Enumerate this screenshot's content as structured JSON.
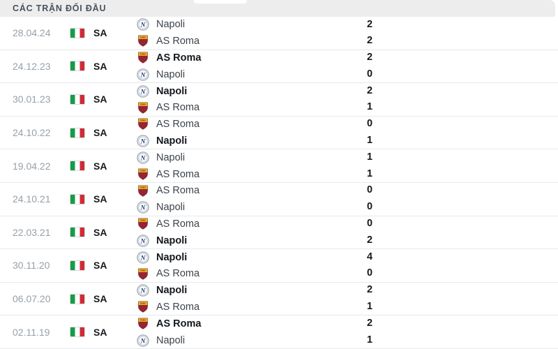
{
  "header": {
    "title": "CÁC TRẬN ĐỐI ĐẦU"
  },
  "list": {
    "league_code": "SA",
    "flag_icon": "italy-flag-icon",
    "matches": [
      {
        "date": "28.04.24",
        "home": {
          "team": "Napoli",
          "logo": "napoli-logo",
          "score": "2"
        },
        "away": {
          "team": "AS Roma",
          "logo": "roma-logo",
          "score": "2"
        },
        "winner": ""
      },
      {
        "date": "24.12.23",
        "home": {
          "team": "AS Roma",
          "logo": "roma-logo",
          "score": "2"
        },
        "away": {
          "team": "Napoli",
          "logo": "napoli-logo",
          "score": "0"
        },
        "winner": "home"
      },
      {
        "date": "30.01.23",
        "home": {
          "team": "Napoli",
          "logo": "napoli-logo",
          "score": "2"
        },
        "away": {
          "team": "AS Roma",
          "logo": "roma-logo",
          "score": "1"
        },
        "winner": "home"
      },
      {
        "date": "24.10.22",
        "home": {
          "team": "AS Roma",
          "logo": "roma-logo",
          "score": "0"
        },
        "away": {
          "team": "Napoli",
          "logo": "napoli-logo",
          "score": "1"
        },
        "winner": "away"
      },
      {
        "date": "19.04.22",
        "home": {
          "team": "Napoli",
          "logo": "napoli-logo",
          "score": "1"
        },
        "away": {
          "team": "AS Roma",
          "logo": "roma-logo",
          "score": "1"
        },
        "winner": ""
      },
      {
        "date": "24.10.21",
        "home": {
          "team": "AS Roma",
          "logo": "roma-logo",
          "score": "0"
        },
        "away": {
          "team": "Napoli",
          "logo": "napoli-logo",
          "score": "0"
        },
        "winner": ""
      },
      {
        "date": "22.03.21",
        "home": {
          "team": "AS Roma",
          "logo": "roma-logo",
          "score": "0"
        },
        "away": {
          "team": "Napoli",
          "logo": "napoli-logo",
          "score": "2"
        },
        "winner": "away"
      },
      {
        "date": "30.11.20",
        "home": {
          "team": "Napoli",
          "logo": "napoli-logo",
          "score": "4"
        },
        "away": {
          "team": "AS Roma",
          "logo": "roma-logo",
          "score": "0"
        },
        "winner": "home"
      },
      {
        "date": "06.07.20",
        "home": {
          "team": "Napoli",
          "logo": "napoli-logo",
          "score": "2"
        },
        "away": {
          "team": "AS Roma",
          "logo": "roma-logo",
          "score": "1"
        },
        "winner": "home"
      },
      {
        "date": "02.11.19",
        "home": {
          "team": "AS Roma",
          "logo": "roma-logo",
          "score": "2"
        },
        "away": {
          "team": "Napoli",
          "logo": "napoli-logo",
          "score": "1"
        },
        "winner": "home"
      }
    ]
  },
  "colors": {
    "header_bg": "#ededed",
    "header_text": "#4a525b",
    "date_text": "#98a0a8",
    "divider": "#e7e9eb",
    "flag_green": "#169b48",
    "flag_red": "#ce2b37",
    "napoli_navy": "#1d3c6e",
    "roma_maroon": "#962433",
    "roma_gold": "#eab41f",
    "score_text": "#14181d"
  }
}
